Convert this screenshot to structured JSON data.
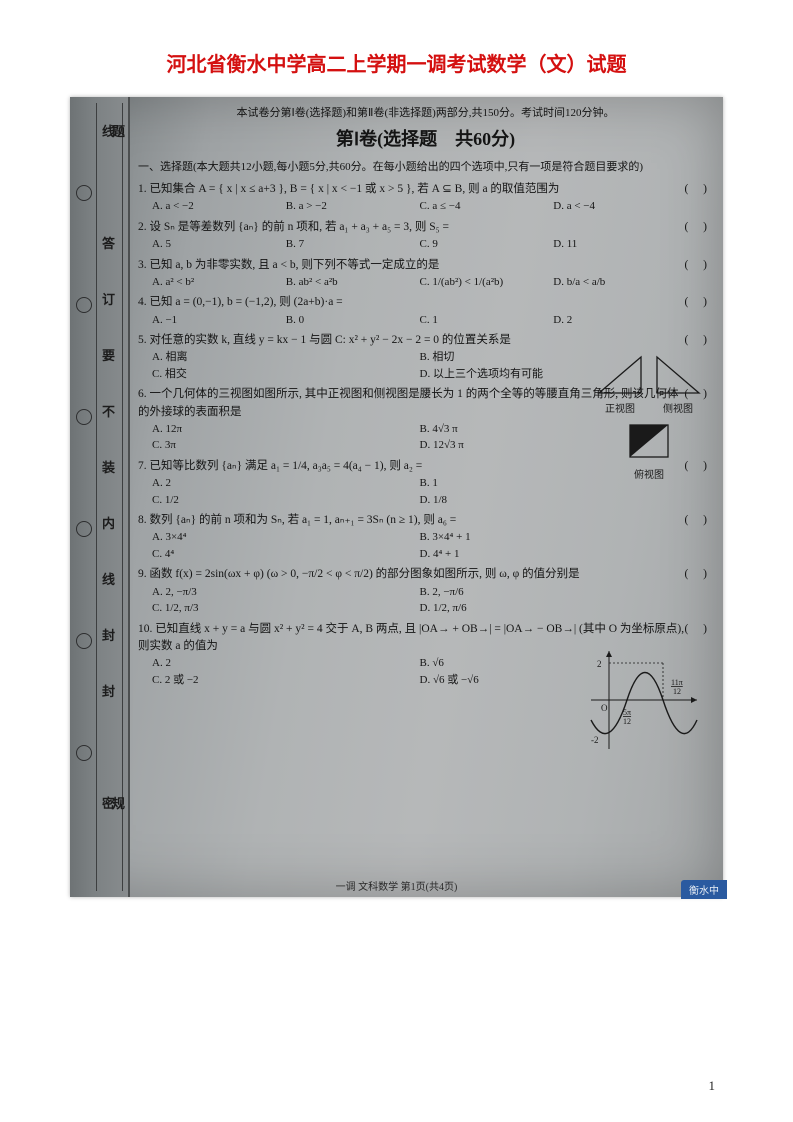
{
  "page": {
    "title": "河北省衡水中学高二上学期一调考试数学（文）试题",
    "header_note": "本试卷分第Ⅰ卷(选择题)和第Ⅱ卷(非选择题)两部分,共150分。考试时间120分钟。",
    "section_title": "第Ⅰ卷(选择题　共60分)",
    "instructions": "一、选择题(本大题共12小题,每小题5分,共60分。在每小题给出的四个选项中,只有一项是符合题目要求的)",
    "page_number": "1",
    "footer": "一调  文科数学 第1页(共4页)",
    "corner_tag": "衡水中",
    "colors": {
      "title": "#d41010",
      "scan_bg_start": "#7a7f82",
      "scan_bg_end": "#a4a7a8",
      "text": "#141414",
      "page_bg": "#ffffff"
    },
    "fonts": {
      "title_family": "SimHei",
      "body_family": "SimSun",
      "title_size_pt": 15,
      "body_size_pt": 8.5
    }
  },
  "gutter": {
    "outer_chars": [
      "线",
      "答",
      "订",
      "要",
      "不",
      "装",
      "内",
      "线",
      "封",
      "封",
      "密"
    ],
    "inner_chars": [
      "题",
      "",
      "",
      "",
      "",
      "",
      "",
      "",
      "",
      "",
      "规"
    ],
    "circle_positions_pct": [
      12,
      26,
      40,
      54,
      68,
      82
    ]
  },
  "triangles": {
    "labels": [
      "正视图",
      "侧视图",
      "俯视图"
    ],
    "stroke": "#1a1a1a",
    "fill_black": "#1a1a1a"
  },
  "graph": {
    "amplitude": 2,
    "y_ticks": [
      -2,
      2
    ],
    "x_labels": [
      "5π/12",
      "11π/12"
    ],
    "axis_color": "#1a1a1a",
    "curve_color": "#1a1a1a"
  },
  "questions": [
    {
      "n": "1",
      "stem": "已知集合 A = { x | x ≤ a+3 }, B = { x | x < −1 或 x > 5 }, 若 A ⊆ B, 则 a 的取值范围为",
      "opts": [
        "A. a < −2",
        "B. a > −2",
        "C. a ≤ −4",
        "D. a < −4"
      ]
    },
    {
      "n": "2",
      "stem": "设 Sₙ 是等差数列 {aₙ} 的前 n 项和, 若 a₁ + a₃ + a₅ = 3, 则 S₅ =",
      "opts": [
        "A. 5",
        "B. 7",
        "C. 9",
        "D. 11"
      ]
    },
    {
      "n": "3",
      "stem": "已知 a, b 为非零实数, 且 a < b, 则下列不等式一定成立的是",
      "opts": [
        "A. a² < b²",
        "B. ab² < a²b",
        "C. 1/(ab²) < 1/(a²b)",
        "D. b/a < a/b"
      ]
    },
    {
      "n": "4",
      "stem": "已知 a = (0,−1), b = (−1,2), 则 (2a+b)·a =",
      "opts": [
        "A. −1",
        "B. 0",
        "C. 1",
        "D. 2"
      ]
    },
    {
      "n": "5",
      "stem": "对任意的实数 k, 直线 y = kx − 1 与圆 C: x² + y² − 2x − 2 = 0 的位置关系是",
      "opts": [
        "A. 相离",
        "B. 相切",
        "C. 相交",
        "D. 以上三个选项均有可能"
      ]
    },
    {
      "n": "6",
      "stem": "一个几何体的三视图如图所示, 其中正视图和侧视图是腰长为 1 的两个全等的等腰直角三角形, 则该几何体的外接球的表面积是",
      "opts": [
        "A. 12π",
        "B. 4√3 π",
        "C. 3π",
        "D. 12√3 π"
      ]
    },
    {
      "n": "7",
      "stem": "已知等比数列 {aₙ} 满足 a₁ = 1/4, a₃a₅ = 4(a₄ − 1), 则 a₂ =",
      "opts": [
        "A. 2",
        "B. 1",
        "C. 1/2",
        "D. 1/8"
      ]
    },
    {
      "n": "8",
      "stem": "数列 {aₙ} 的前 n 项和为 Sₙ, 若 a₁ = 1, aₙ₊₁ = 3Sₙ (n ≥ 1), 则 a₆ =",
      "opts": [
        "A. 3×4⁴",
        "B. 3×4⁴ + 1",
        "C. 4⁴",
        "D. 4⁴ + 1"
      ]
    },
    {
      "n": "9",
      "stem": "函数 f(x) = 2sin(ωx + φ) (ω > 0, −π/2 < φ < π/2) 的部分图象如图所示, 则 ω, φ 的值分别是",
      "opts": [
        "A. 2, −π/3",
        "B. 2, −π/6",
        "C. 1/2, π/3",
        "D. 1/2, π/6"
      ]
    },
    {
      "n": "10",
      "stem": "已知直线 x + y = a 与圆 x² + y² = 4 交于 A, B 两点, 且 |OA→ + OB→| = |OA→ − OB→| (其中 O 为坐标原点), 则实数 a 的值为",
      "opts": [
        "A. 2",
        "B. √6",
        "C. 2 或 −2",
        "D. √6 或 −√6"
      ]
    }
  ]
}
